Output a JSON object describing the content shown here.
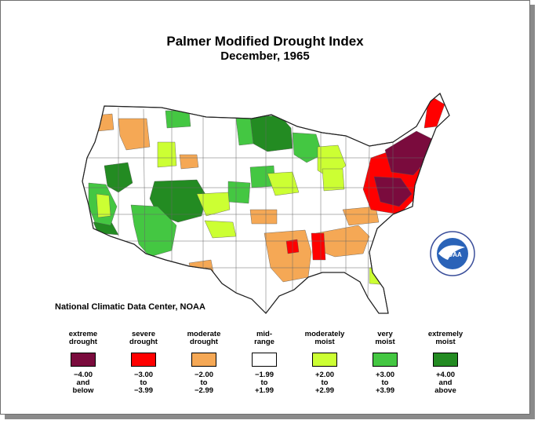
{
  "title": "Palmer Modified Drought Index",
  "subtitle": "December, 1965",
  "credit": "National Climatic Data Center, NOAA",
  "logo_text": "NOAA",
  "colors": {
    "extreme_drought": "#7a0b3d",
    "severe_drought": "#ff0000",
    "moderate_drought": "#f5a855",
    "mid_range": "#ffffff",
    "moderately_moist": "#ccff33",
    "very_moist": "#44c742",
    "extremely_moist": "#238b22"
  },
  "legend": [
    {
      "line1": "extreme",
      "line2": "drought",
      "r1": "−4.00",
      "r2": "and",
      "r3": "below",
      "color": "#7a0b3d"
    },
    {
      "line1": "severe",
      "line2": "drought",
      "r1": "−3.00",
      "r2": "to",
      "r3": "−3.99",
      "color": "#ff0000"
    },
    {
      "line1": "moderate",
      "line2": "drought",
      "r1": "−2.00",
      "r2": "to",
      "r3": "−2.99",
      "color": "#f5a855"
    },
    {
      "line1": "mid-",
      "line2": "range",
      "r1": "−1.99",
      "r2": "to",
      "r3": "+1.99",
      "color": "#ffffff"
    },
    {
      "line1": "moderately",
      "line2": "moist",
      "r1": "+2.00",
      "r2": "to",
      "r3": "+2.99",
      "color": "#ccff33"
    },
    {
      "line1": "very",
      "line2": "moist",
      "r1": "+3.00",
      "r2": "to",
      "r3": "+3.99",
      "color": "#44c742"
    },
    {
      "line1": "extremely",
      "line2": "moist",
      "r1": "+4.00",
      "r2": "and",
      "r3": "above",
      "color": "#238b22"
    }
  ]
}
